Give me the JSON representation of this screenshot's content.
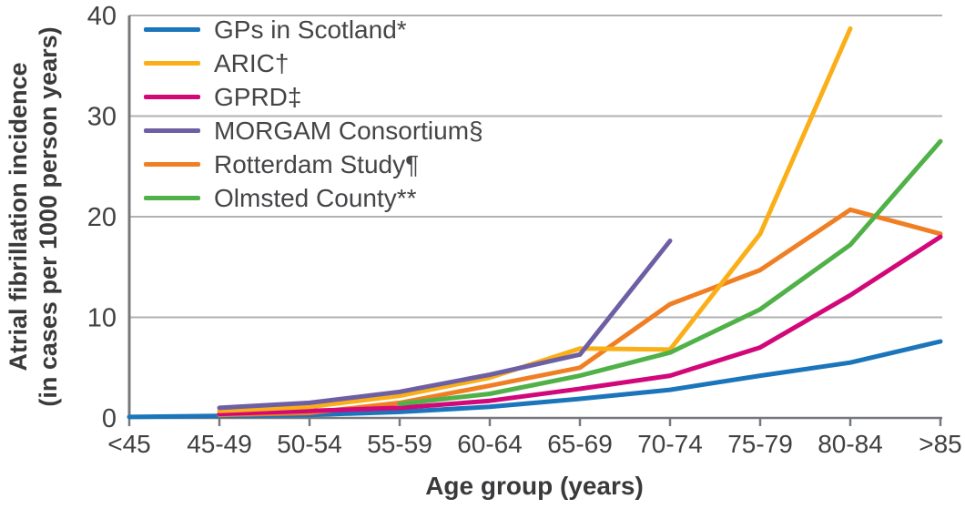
{
  "chart_data": {
    "type": "line",
    "title": "",
    "xlabel": "Age group (years)",
    "ylabel_line1": "Atrial fibrillation incidence",
    "ylabel_line2": "(in cases per 1000 person years)",
    "categories": [
      "<45",
      "45-49",
      "50-54",
      "55-59",
      "60-64",
      "65-69",
      "70-74",
      "75-79",
      "80-84",
      ">85"
    ],
    "ylim": [
      0,
      40
    ],
    "yticks": [
      0,
      10,
      20,
      30,
      40
    ],
    "grid": "horizontal",
    "legend_position": "top-left",
    "draw_order": [
      0,
      4,
      2,
      1,
      3,
      5
    ],
    "series": [
      {
        "name": "GPs in Scotland*",
        "color": "#1B75BB",
        "values": [
          0.1,
          0.2,
          0.3,
          0.6,
          1.1,
          1.9,
          2.8,
          4.2,
          5.5,
          7.6
        ]
      },
      {
        "name": "ARIC†",
        "color": "#FAAF18",
        "values": [
          null,
          0.7,
          1.1,
          2.2,
          4.0,
          6.9,
          6.8,
          18.3,
          38.7,
          null
        ]
      },
      {
        "name": "GPRD‡",
        "color": "#D2077A",
        "values": [
          null,
          0.4,
          0.7,
          1.0,
          1.7,
          2.9,
          4.2,
          7.0,
          12.2,
          18.0
        ]
      },
      {
        "name": "MORGAM Consortium§",
        "color": "#6E5FA5",
        "values": [
          null,
          1.0,
          1.5,
          2.6,
          4.3,
          6.3,
          17.6,
          null,
          null,
          null
        ]
      },
      {
        "name": "Rotterdam Study¶",
        "color": "#F07F24",
        "values": [
          null,
          0.3,
          0.5,
          1.5,
          3.2,
          5.0,
          11.3,
          14.7,
          20.7,
          18.3
        ]
      },
      {
        "name": "Olmsted County**",
        "color": "#50B148",
        "values": [
          null,
          null,
          null,
          1.4,
          2.4,
          4.2,
          6.5,
          10.8,
          17.2,
          27.5
        ]
      }
    ]
  },
  "colors": {
    "background": "#FFFFFF",
    "gridline": "#B1B1B3",
    "axis": "#77787B",
    "tick_text": "#414042",
    "title_text": "#3A3A3C",
    "legend_text": "#454548"
  }
}
